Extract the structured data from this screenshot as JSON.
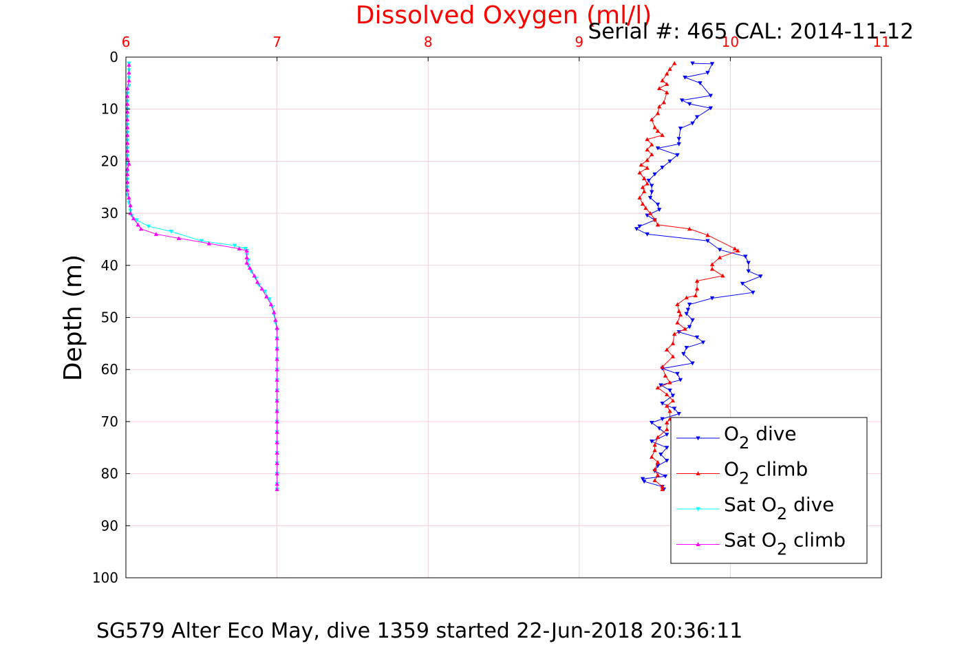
{
  "chart_data": {
    "type": "line",
    "title": "Dissolved Oxygen (ml/l)",
    "serial_text": "Serial #: 465  CAL: 2014-11-12",
    "caption": "SG579 Alter Eco May, dive 1359 started 22-Jun-2018 20:36:11",
    "ylabel": "Depth (m)",
    "xlabel": "",
    "xlim": [
      6,
      11
    ],
    "ylim": [
      0,
      100
    ],
    "y_reversed": true,
    "x_axis_position": "top",
    "xticks": [
      "6",
      "7",
      "8",
      "9",
      "10",
      "11"
    ],
    "yticks": [
      "0",
      "10",
      "20",
      "30",
      "40",
      "50",
      "60",
      "70",
      "80",
      "90",
      "100"
    ],
    "grid": true,
    "legend_position": "bottom-right",
    "colors": {
      "title": "#ff0000",
      "xtick": "#ff0000",
      "grid": "#f2cdd6",
      "axis": "#000000"
    },
    "series": [
      {
        "name": "O2 dive",
        "legend": {
          "pre": "O",
          "sub": "2",
          "post": " dive"
        },
        "color": "#0000ff",
        "marker": "triangle-down",
        "points": [
          [
            9.75,
            1.2
          ],
          [
            9.88,
            1.3
          ],
          [
            9.85,
            3.0
          ],
          [
            9.7,
            3.9
          ],
          [
            9.8,
            5.0
          ],
          [
            9.87,
            7.4
          ],
          [
            9.68,
            8.3
          ],
          [
            9.73,
            9.0
          ],
          [
            9.87,
            9.8
          ],
          [
            9.78,
            11.5
          ],
          [
            9.75,
            12.7
          ],
          [
            9.67,
            13.7
          ],
          [
            9.66,
            15.7
          ],
          [
            9.66,
            16.7
          ],
          [
            9.52,
            17.5
          ],
          [
            9.65,
            18.8
          ],
          [
            9.6,
            20.0
          ],
          [
            9.55,
            21.2
          ],
          [
            9.5,
            22.5
          ],
          [
            9.46,
            23.7
          ],
          [
            9.48,
            24.7
          ],
          [
            9.48,
            25.9
          ],
          [
            9.47,
            27.0
          ],
          [
            9.52,
            28.3
          ],
          [
            9.53,
            29.3
          ],
          [
            9.45,
            30.4
          ],
          [
            9.5,
            31.3
          ],
          [
            9.4,
            32.5
          ],
          [
            9.38,
            33.0
          ],
          [
            9.45,
            34.0
          ],
          [
            9.85,
            35.3
          ],
          [
            9.93,
            37.0
          ],
          [
            10.1,
            38.3
          ],
          [
            10.12,
            39.5
          ],
          [
            10.12,
            41.1
          ],
          [
            10.2,
            42.1
          ],
          [
            10.08,
            43.5
          ],
          [
            10.15,
            45.2
          ],
          [
            9.88,
            46.3
          ],
          [
            9.73,
            47.5
          ],
          [
            9.72,
            48.5
          ],
          [
            9.71,
            49.3
          ],
          [
            9.75,
            50.5
          ],
          [
            9.73,
            51.8
          ],
          [
            9.66,
            52.8
          ],
          [
            9.78,
            53.8
          ],
          [
            9.82,
            54.8
          ],
          [
            9.71,
            55.8
          ],
          [
            9.69,
            57.0
          ],
          [
            9.75,
            58.8
          ],
          [
            9.55,
            59.8
          ],
          [
            9.65,
            60.8
          ],
          [
            9.67,
            62.0
          ],
          [
            9.54,
            63.0
          ],
          [
            9.6,
            64.0
          ],
          [
            9.62,
            65.0
          ],
          [
            9.55,
            66.5
          ],
          [
            9.63,
            67.5
          ],
          [
            9.66,
            68.5
          ],
          [
            9.55,
            69.5
          ],
          [
            9.48,
            70.2
          ],
          [
            9.53,
            71.3
          ],
          [
            9.58,
            72.5
          ],
          [
            9.48,
            73.8
          ],
          [
            9.58,
            75.0
          ],
          [
            9.54,
            76.3
          ],
          [
            9.58,
            77.5
          ],
          [
            9.52,
            78.5
          ],
          [
            9.5,
            79.5
          ],
          [
            9.57,
            80.5
          ],
          [
            9.42,
            81.0
          ],
          [
            9.43,
            81.5
          ],
          [
            9.55,
            82.5
          ],
          [
            9.56,
            83.0
          ]
        ]
      },
      {
        "name": "O2 climb",
        "legend": {
          "pre": "O",
          "sub": "2",
          "post": " climb"
        },
        "color": "#ff0000",
        "marker": "triangle-up",
        "points": [
          [
            9.63,
            1.2
          ],
          [
            9.6,
            2.3
          ],
          [
            9.58,
            3.2
          ],
          [
            9.55,
            4.5
          ],
          [
            9.58,
            5.2
          ],
          [
            9.53,
            6.0
          ],
          [
            9.58,
            6.8
          ],
          [
            9.56,
            8.7
          ],
          [
            9.53,
            9.5
          ],
          [
            9.52,
            10.8
          ],
          [
            9.48,
            12.0
          ],
          [
            9.5,
            13.5
          ],
          [
            9.52,
            14.2
          ],
          [
            9.55,
            15.0
          ],
          [
            9.45,
            15.8
          ],
          [
            9.48,
            16.8
          ],
          [
            9.45,
            17.8
          ],
          [
            9.48,
            18.7
          ],
          [
            9.45,
            19.8
          ],
          [
            9.41,
            20.7
          ],
          [
            9.45,
            21.3
          ],
          [
            9.4,
            22.2
          ],
          [
            9.43,
            23.3
          ],
          [
            9.45,
            24.3
          ],
          [
            9.42,
            25.0
          ],
          [
            9.43,
            25.8
          ],
          [
            9.4,
            27.0
          ],
          [
            9.42,
            28.2
          ],
          [
            9.44,
            29.0
          ],
          [
            9.47,
            30.0
          ],
          [
            9.5,
            31.2
          ],
          [
            9.52,
            32.2
          ],
          [
            9.73,
            33.0
          ],
          [
            9.85,
            34.2
          ],
          [
            10.03,
            36.8
          ],
          [
            10.05,
            37.2
          ],
          [
            9.93,
            38.5
          ],
          [
            9.88,
            39.8
          ],
          [
            9.88,
            40.7
          ],
          [
            9.95,
            42.0
          ],
          [
            9.78,
            43.0
          ],
          [
            9.78,
            44.5
          ],
          [
            9.77,
            45.8
          ],
          [
            9.71,
            46.2
          ],
          [
            9.65,
            47.5
          ],
          [
            9.66,
            48.8
          ],
          [
            9.67,
            49.5
          ],
          [
            9.65,
            51.0
          ],
          [
            9.7,
            52.2
          ],
          [
            9.63,
            53.2
          ],
          [
            9.62,
            55.0
          ],
          [
            9.58,
            56.2
          ],
          [
            9.62,
            57.5
          ],
          [
            9.55,
            59.5
          ],
          [
            9.57,
            61.2
          ],
          [
            9.6,
            62.5
          ],
          [
            9.52,
            63.5
          ],
          [
            9.58,
            64.8
          ],
          [
            9.62,
            66.0
          ],
          [
            9.58,
            67.0
          ],
          [
            9.6,
            68.0
          ],
          [
            9.6,
            69.5
          ],
          [
            9.58,
            70.2
          ],
          [
            9.58,
            71.5
          ],
          [
            9.52,
            73.0
          ],
          [
            9.5,
            74.5
          ],
          [
            9.5,
            75.5
          ],
          [
            9.48,
            76.8
          ],
          [
            9.52,
            77.8
          ],
          [
            9.5,
            79.2
          ],
          [
            9.52,
            80.3
          ],
          [
            9.5,
            81.3
          ],
          [
            9.55,
            82.5
          ],
          [
            9.55,
            83.0
          ]
        ]
      },
      {
        "name": "Sat O2 dive",
        "legend": {
          "pre": "Sat O",
          "sub": "2",
          "post": " dive"
        },
        "color": "#00ffff",
        "marker": "triangle-down",
        "points": [
          [
            6.02,
            1.2
          ],
          [
            6.02,
            2.5
          ],
          [
            6.02,
            4.0
          ],
          [
            6.02,
            5.5
          ],
          [
            6.01,
            7.0
          ],
          [
            6.01,
            8.5
          ],
          [
            6.01,
            10.0
          ],
          [
            6.01,
            11.5
          ],
          [
            6.01,
            13.0
          ],
          [
            6.01,
            14.5
          ],
          [
            6.01,
            16.0
          ],
          [
            6.01,
            17.5
          ],
          [
            6.01,
            19.0
          ],
          [
            6.01,
            20.5
          ],
          [
            6.01,
            22.0
          ],
          [
            6.01,
            23.5
          ],
          [
            6.01,
            25.0
          ],
          [
            6.01,
            26.5
          ],
          [
            6.02,
            28.0
          ],
          [
            6.03,
            29.5
          ],
          [
            6.04,
            30.5
          ],
          [
            6.07,
            31.3
          ],
          [
            6.15,
            32.5
          ],
          [
            6.3,
            33.5
          ],
          [
            6.5,
            35.3
          ],
          [
            6.72,
            36.2
          ],
          [
            6.79,
            36.8
          ],
          [
            6.8,
            37.2
          ],
          [
            6.8,
            38.0
          ],
          [
            6.81,
            39.0
          ],
          [
            6.81,
            40.0
          ],
          [
            6.83,
            41.2
          ],
          [
            6.86,
            42.5
          ],
          [
            6.88,
            43.8
          ],
          [
            6.92,
            45.0
          ],
          [
            6.95,
            46.5
          ],
          [
            6.97,
            48.0
          ],
          [
            6.98,
            49.5
          ],
          [
            6.99,
            51.0
          ],
          [
            7.0,
            52.5
          ],
          [
            7.0,
            54.0
          ],
          [
            7.0,
            56.0
          ],
          [
            7.0,
            58.0
          ],
          [
            7.0,
            60.0
          ],
          [
            7.0,
            62.0
          ],
          [
            7.0,
            64.0
          ],
          [
            7.0,
            66.0
          ],
          [
            7.0,
            68.0
          ],
          [
            7.0,
            70.0
          ],
          [
            7.0,
            72.0
          ],
          [
            7.0,
            74.0
          ],
          [
            7.0,
            76.0
          ],
          [
            7.0,
            78.0
          ],
          [
            7.0,
            80.0
          ],
          [
            7.0,
            82.0
          ],
          [
            7.0,
            83.0
          ]
        ]
      },
      {
        "name": "Sat O2 climb",
        "legend": {
          "pre": "Sat O",
          "sub": "2",
          "post": " climb"
        },
        "color": "#ff00ff",
        "marker": "triangle-up",
        "points": [
          [
            6.02,
            1.5
          ],
          [
            6.02,
            3.0
          ],
          [
            6.02,
            4.5
          ],
          [
            6.01,
            6.0
          ],
          [
            6.01,
            7.5
          ],
          [
            6.01,
            9.0
          ],
          [
            6.01,
            10.5
          ],
          [
            6.01,
            12.0
          ],
          [
            6.01,
            13.5
          ],
          [
            6.01,
            15.0
          ],
          [
            6.01,
            16.5
          ],
          [
            6.01,
            18.0
          ],
          [
            6.01,
            19.5
          ],
          [
            6.02,
            20.5
          ],
          [
            6.01,
            21.5
          ],
          [
            6.01,
            22.5
          ],
          [
            6.01,
            24.0
          ],
          [
            6.01,
            25.5
          ],
          [
            6.02,
            27.0
          ],
          [
            6.03,
            28.5
          ],
          [
            6.03,
            30.0
          ],
          [
            6.05,
            31.0
          ],
          [
            6.08,
            32.2
          ],
          [
            6.1,
            33.0
          ],
          [
            6.2,
            34.0
          ],
          [
            6.35,
            34.8
          ],
          [
            6.55,
            35.8
          ],
          [
            6.75,
            36.8
          ],
          [
            6.8,
            37.2
          ],
          [
            6.8,
            38.5
          ],
          [
            6.8,
            39.5
          ],
          [
            6.82,
            40.5
          ],
          [
            6.85,
            42.0
          ],
          [
            6.87,
            43.2
          ],
          [
            6.9,
            44.5
          ],
          [
            6.93,
            46.0
          ],
          [
            6.96,
            47.5
          ],
          [
            6.98,
            49.0
          ],
          [
            6.99,
            50.5
          ],
          [
            7.0,
            52.0
          ],
          [
            7.0,
            54.0
          ],
          [
            7.0,
            56.0
          ],
          [
            7.0,
            58.0
          ],
          [
            7.0,
            60.0
          ],
          [
            7.0,
            62.0
          ],
          [
            7.0,
            64.0
          ],
          [
            7.0,
            66.0
          ],
          [
            7.0,
            68.0
          ],
          [
            7.0,
            70.0
          ],
          [
            7.0,
            72.0
          ],
          [
            7.0,
            74.0
          ],
          [
            7.0,
            76.0
          ],
          [
            7.0,
            78.0
          ],
          [
            7.0,
            80.0
          ],
          [
            7.0,
            82.0
          ],
          [
            7.0,
            83.0
          ]
        ]
      }
    ]
  }
}
